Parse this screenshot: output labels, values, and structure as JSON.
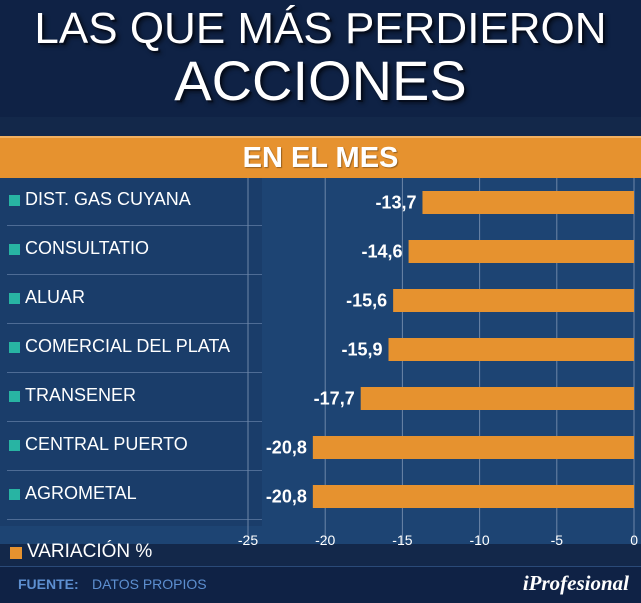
{
  "header": {
    "title_line1": "LAS QUE MÁS PERDIERON",
    "title_line2": "ACCIONES",
    "subtitle": "EN EL MES"
  },
  "chart_data": {
    "type": "bar",
    "orientation": "horizontal",
    "categories": [
      "DIST. GAS CUYANA",
      "CONSULTATIO",
      "ALUAR",
      "COMERCIAL DEL PLATA",
      "TRANSENER",
      "CENTRAL PUERTO",
      "AGROMETAL"
    ],
    "values": [
      -13.7,
      -14.6,
      -15.6,
      -15.9,
      -17.7,
      -20.8,
      -20.8
    ],
    "value_labels": [
      "-13,7",
      "-14,6",
      "-15,6",
      "-15,9",
      "-17,7",
      "-20,8",
      "-20,8"
    ],
    "xlim": [
      -25,
      0
    ],
    "ticks": [
      -25,
      -20,
      -15,
      -10,
      -5,
      0
    ],
    "tick_labels": [
      "-25",
      "-20",
      "-15",
      "-10",
      "-5",
      "0"
    ],
    "grid": true,
    "legend": "VARIACIÓN %",
    "legend_position": "bottom-left"
  },
  "colors": {
    "bar": "#e6922f",
    "background": "#13284a",
    "plot_panel": "#1d4473",
    "label_square": "#28b4a3",
    "gridline": "#6d86a8"
  },
  "footer": {
    "source_label": "FUENTE:",
    "source_value": "DATOS PROPIOS",
    "brand": "iProfesional"
  }
}
